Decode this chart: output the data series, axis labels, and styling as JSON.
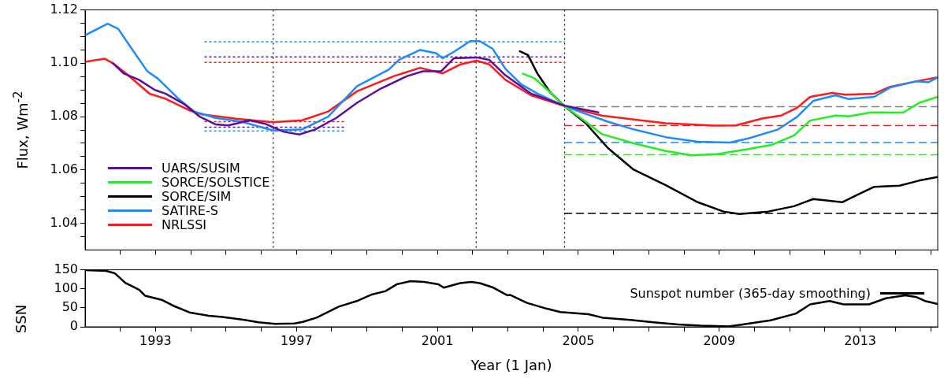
{
  "chart_data": [
    {
      "type": "line",
      "ylabel": "Flux, Wm$^{-2}$",
      "xlim": [
        1991,
        2015.2
      ],
      "ylim": [
        1.03,
        1.12
      ],
      "xticks": [
        {
          "value": 1992,
          "label": null
        },
        1993,
        {
          "value": 1994,
          "label": null
        },
        {
          "value": 1995,
          "label": null
        },
        {
          "value": 1996,
          "label": null
        },
        1997,
        {
          "value": 1998,
          "label": null
        },
        {
          "value": 1999,
          "label": null
        },
        {
          "value": 2000,
          "label": null
        },
        2001,
        {
          "value": 2002,
          "label": null
        },
        {
          "value": 2003,
          "label": null
        },
        {
          "value": 2004,
          "label": null
        },
        2005,
        {
          "value": 2006,
          "label": null
        },
        {
          "value": 2007,
          "label": null
        },
        {
          "value": 2008,
          "label": null
        },
        2009,
        {
          "value": 2010,
          "label": null
        },
        {
          "value": 2011,
          "label": null
        },
        {
          "value": 2012,
          "label": null
        },
        2013,
        {
          "value": 2014,
          "label": null
        },
        {
          "value": 2015,
          "label": null
        }
      ],
      "yticks": [
        {
          "value": 1.035,
          "label": null
        },
        1.04,
        {
          "value": 1.045,
          "label": null
        },
        {
          "value": 1.05,
          "label": null
        },
        {
          "value": 1.055,
          "label": null
        },
        1.06,
        {
          "value": 1.065,
          "label": null
        },
        {
          "value": 1.07,
          "label": null
        },
        {
          "value": 1.075,
          "label": null
        },
        1.08,
        {
          "value": 1.085,
          "label": null
        },
        {
          "value": 1.09,
          "label": null
        },
        {
          "value": 1.095,
          "label": null
        },
        {
          "value": 1.1,
          "label": "1.10"
        },
        {
          "value": 1.105,
          "label": null
        },
        {
          "value": 1.11,
          "label": null
        },
        {
          "value": 1.115,
          "label": null
        },
        1.12
      ],
      "tick_labels": "y",
      "legend": "bottom left",
      "marker": "none",
      "ref_lines": [
        {
          "axis": "x",
          "value": 1996.34,
          "color": "#000000",
          "line_style": "dotted"
        },
        {
          "axis": "x",
          "value": 2002.1,
          "color": "#000000",
          "line_style": "dotted"
        },
        {
          "axis": "x",
          "value": 2004.61,
          "color": "#000000",
          "line_style": "dotted"
        }
      ],
      "series": [
        {
          "name": "UARS/SUSIM",
          "color": "#5a0fa0",
          "x": [
            1991.79,
            1992.09,
            1992.53,
            1992.98,
            1993.28,
            1993.8,
            1994.25,
            1994.7,
            1995.07,
            1995.67,
            1996.11,
            1996.64,
            1997.08,
            1997.53,
            1998.13,
            1998.72,
            1999.39,
            2000.14,
            2000.59,
            2001.11,
            2001.47,
            2002.11,
            2002.47,
            2002.93,
            2003.66,
            2004.61,
            2005.57
          ],
          "values": [
            1.1,
            1.0962,
            1.0938,
            1.09,
            1.0886,
            1.0848,
            1.08,
            1.0771,
            1.0767,
            1.0786,
            1.0773,
            1.0743,
            1.0733,
            1.0752,
            1.0795,
            1.0852,
            1.0905,
            1.0952,
            1.097,
            1.097,
            1.1019,
            1.1022,
            1.1013,
            1.0955,
            1.0886,
            1.0841,
            1.0816
          ]
        },
        {
          "name": "SORCE/SOLSTICE",
          "color": "#22ee22",
          "x": [
            2003.43,
            2003.75,
            2004.2,
            2004.61,
            2005.21,
            2005.66,
            2006.57,
            2007.48,
            2008.21,
            2008.94,
            2009.76,
            2010.49,
            2011.12,
            2011.58,
            2012.3,
            2012.67,
            2013.31,
            2014.22,
            2014.67,
            2015.2
          ],
          "values": [
            1.0961,
            1.0944,
            1.0891,
            1.0839,
            1.0781,
            1.0735,
            1.07,
            1.0671,
            1.0655,
            1.0659,
            1.0677,
            1.0694,
            1.0729,
            1.0785,
            1.0804,
            1.0801,
            1.0816,
            1.0815,
            1.0851,
            1.0874
          ]
        },
        {
          "name": "SORCE/SIM",
          "color": "#000000",
          "x": [
            2003.34,
            2003.57,
            2003.84,
            2004.2,
            2004.61,
            2005.21,
            2005.84,
            2006.57,
            2007.48,
            2008.39,
            2009.12,
            2009.57,
            2010.39,
            2011.12,
            2011.67,
            2012.49,
            2012.85,
            2013.4,
            2014.12,
            2014.67,
            2015.2
          ],
          "values": [
            1.1045,
            1.1031,
            1.0961,
            1.0891,
            1.0839,
            1.0775,
            1.0682,
            1.0601,
            1.0543,
            1.0479,
            1.0444,
            1.0435,
            1.0444,
            1.0464,
            1.0491,
            1.0479,
            1.0502,
            1.0537,
            1.0541,
            1.056,
            1.0574
          ]
        },
        {
          "name": "SATIRE-S",
          "color": "#1a8cff",
          "x": [
            1991,
            1991.64,
            1991.94,
            1992.31,
            1992.76,
            1993.06,
            1993.65,
            1994.1,
            1994.7,
            1995.44,
            1996.34,
            1997.16,
            1997.9,
            1998.72,
            1999.62,
            1999.92,
            2000.51,
            2000.96,
            2001.15,
            2001.47,
            2001.93,
            2002.2,
            2002.57,
            2002.93,
            2003.38,
            2003.84,
            2004.61,
            2005.21,
            2005.84,
            2006.57,
            2007.48,
            2008.39,
            2009.3,
            2009.85,
            2010.67,
            2011.21,
            2011.67,
            2012.3,
            2012.67,
            2013.4,
            2013.85,
            2014.58,
            2014.94,
            2015.2
          ],
          "values": [
            1.1105,
            1.1148,
            1.1129,
            1.1057,
            1.0971,
            1.0943,
            1.0867,
            1.0819,
            1.0795,
            1.0781,
            1.0748,
            1.0752,
            1.08,
            1.0914,
            1.0976,
            1.1014,
            1.105,
            1.1038,
            1.1019,
            1.1043,
            1.1083,
            1.1083,
            1.1054,
            1.0979,
            1.0921,
            1.0886,
            1.0839,
            1.081,
            1.0781,
            1.0752,
            1.0723,
            1.0706,
            1.0703,
            1.0719,
            1.0752,
            1.0799,
            1.0859,
            1.088,
            1.0866,
            1.0874,
            1.0909,
            1.0932,
            1.0929,
            1.0947
          ]
        },
        {
          "name": "NRLSSI",
          "color": "#ff1a1a",
          "x": [
            1991,
            1991.56,
            1991.79,
            1992.16,
            1992.83,
            1993.28,
            1993.95,
            1994.32,
            1995.29,
            1996.34,
            1997.16,
            1997.9,
            1998.72,
            1999.77,
            2000.51,
            2001.15,
            2001.66,
            2002.11,
            2002.47,
            2002.93,
            2003.66,
            2004.61,
            2005.66,
            2006.57,
            2007.48,
            2008.85,
            2009.48,
            2010.21,
            2010.76,
            2011.21,
            2011.58,
            2012.21,
            2012.58,
            2013.4,
            2013.85,
            2014.58,
            2015.2
          ],
          "values": [
            1.1005,
            1.1017,
            1.1,
            1.0962,
            1.0886,
            1.0867,
            1.0824,
            1.0808,
            1.0792,
            1.0779,
            1.0786,
            1.0819,
            1.0895,
            1.0952,
            1.0983,
            1.0962,
            1.0996,
            1.101,
            1.0996,
            1.0938,
            1.088,
            1.0839,
            1.0804,
            1.0789,
            1.0775,
            1.0766,
            1.0767,
            1.0793,
            1.0804,
            1.0833,
            1.0874,
            1.0889,
            1.0882,
            1.0886,
            1.0912,
            1.0932,
            1.0947
          ]
        },
        {
          "color": "#1a8cff",
          "line_style": "dotted",
          "x": [
            1994.4,
            2004.61
          ],
          "values": [
            1.1081,
            1.1081
          ]
        },
        {
          "color": "#5a0fa0",
          "line_style": "dotted",
          "x": [
            1994.4,
            2004.61
          ],
          "values": [
            1.1024,
            1.1024
          ]
        },
        {
          "color": "#ff1a1a",
          "line_style": "dotted",
          "x": [
            1994.4,
            2004.61
          ],
          "values": [
            1.1003,
            1.1003
          ]
        },
        {
          "color": "#ff1a1a",
          "line_style": "dotted",
          "x": [
            1994.4,
            1998.41
          ],
          "values": [
            1.0781,
            1.0781
          ]
        },
        {
          "color": "#5a0fa0",
          "line_style": "dotted",
          "x": [
            1994.4,
            1998.41
          ],
          "values": [
            1.076,
            1.076
          ]
        },
        {
          "color": "#1a8cff",
          "line_style": "dotted",
          "x": [
            1994.4,
            1998.41
          ],
          "values": [
            1.0746,
            1.0746
          ]
        },
        {
          "color": "#808080",
          "line_style": "dashed",
          "x": [
            2004.61,
            2015.2
          ],
          "values": [
            1.0837,
            1.0837
          ]
        },
        {
          "color": "#ff1a1a",
          "line_style": "dashed",
          "x": [
            2004.61,
            2015.2
          ],
          "values": [
            1.0766,
            1.0766
          ]
        },
        {
          "color": "#1a8cff",
          "line_style": "dashed",
          "x": [
            2004.61,
            2015.2
          ],
          "values": [
            1.0703,
            1.0703
          ]
        },
        {
          "color": "#22ee22",
          "line_style": "dashed",
          "x": [
            2004.61,
            2015.2
          ],
          "values": [
            1.0657,
            1.0657
          ]
        },
        {
          "color": "#000000",
          "line_style": "dashed",
          "x": [
            2004.61,
            2015.2
          ],
          "values": [
            1.0437,
            1.0437
          ]
        }
      ]
    },
    {
      "type": "line",
      "xlabel": "Year (1 Jan)",
      "ylabel": "SSN",
      "xlim": [
        1991,
        2015.2
      ],
      "ylim": [
        0,
        150
      ],
      "xticks": [
        {
          "value": 1992,
          "label": null
        },
        1993,
        {
          "value": 1994,
          "label": null
        },
        {
          "value": 1995,
          "label": null
        },
        {
          "value": 1996,
          "label": null
        },
        1997,
        {
          "value": 1998,
          "label": null
        },
        {
          "value": 1999,
          "label": null
        },
        {
          "value": 2000,
          "label": null
        },
        2001,
        {
          "value": 2002,
          "label": null
        },
        {
          "value": 2003,
          "label": null
        },
        {
          "value": 2004,
          "label": null
        },
        2005,
        {
          "value": 2006,
          "label": null
        },
        {
          "value": 2007,
          "label": null
        },
        {
          "value": 2008,
          "label": null
        },
        2009,
        {
          "value": 2010,
          "label": null
        },
        {
          "value": 2011,
          "label": null
        },
        {
          "value": 2012,
          "label": null
        },
        2013,
        {
          "value": 2014,
          "label": null
        },
        {
          "value": 2015,
          "label": null
        }
      ],
      "yticks": [
        0,
        50,
        100,
        150
      ],
      "legend": "top right",
      "marker": "none",
      "series": [
        {
          "name": "Sunspot number (365-day smoothing)",
          "color": "#000000",
          "x": [
            1991,
            1991.6,
            1991.84,
            1992.15,
            1992.54,
            1992.7,
            1993.17,
            1993.49,
            1993.96,
            1994.51,
            1994.9,
            1995.53,
            1995.92,
            1996.39,
            1996.94,
            1997.18,
            1997.57,
            1998.2,
            1998.75,
            1999.14,
            1999.53,
            1999.85,
            2000.24,
            2000.63,
            2001.02,
            2001.18,
            2001.65,
            2001.96,
            2002.2,
            2002.59,
            2002.98,
            2003.06,
            2003.54,
            2004.09,
            2004.49,
            2005.29,
            2005.69,
            2006.48,
            2007.12,
            2007.83,
            2008.47,
            2009.27,
            2009.67,
            2010.46,
            2011.18,
            2011.58,
            2012.13,
            2012.53,
            2013.25,
            2013.73,
            2014.28,
            2014.6,
            2014.84,
            2015.2
          ],
          "values": [
            149,
            147,
            141,
            115,
            97,
            82,
            71,
            56,
            38,
            29,
            26,
            18,
            12,
            8,
            9,
            13,
            24,
            53,
            69,
            85,
            94,
            112,
            120,
            118,
            112,
            103,
            115,
            118,
            115,
            103,
            83,
            84,
            63,
            48,
            39,
            33,
            24,
            18,
            12,
            6,
            3,
            1,
            6,
            17,
            35,
            59,
            68,
            59,
            59,
            75,
            83,
            78,
            68,
            60
          ]
        }
      ]
    }
  ]
}
